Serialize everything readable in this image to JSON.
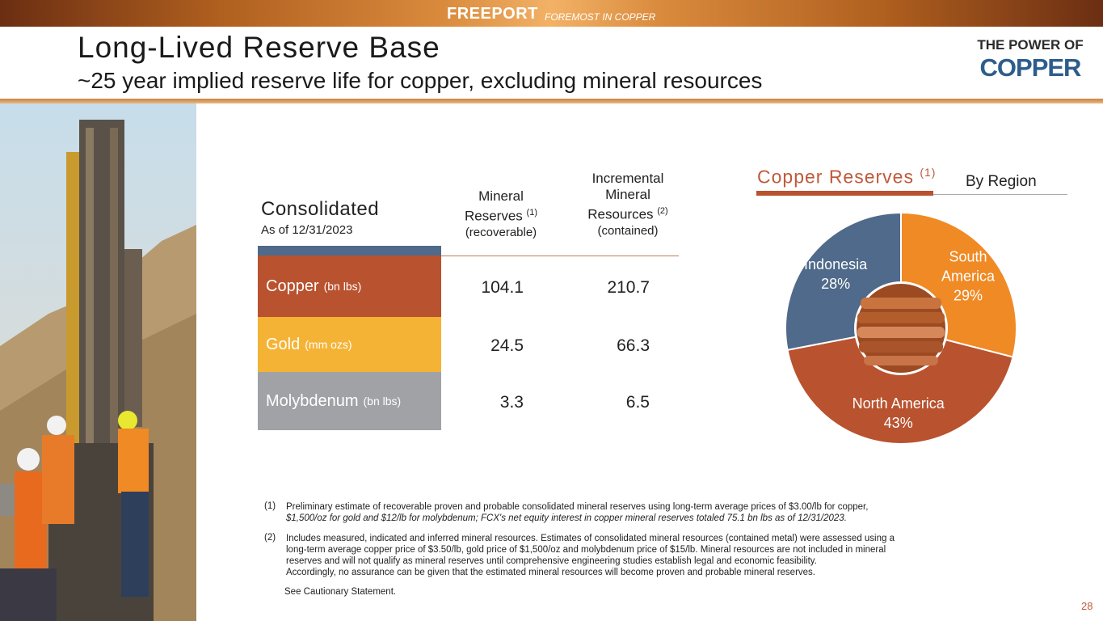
{
  "header": {
    "brand": "FREEPORT",
    "tagline": "FOREMOST IN COPPER",
    "logo_line1": "THE POWER OF",
    "logo_line2": "COPPER"
  },
  "slide": {
    "title": "Long-Lived Reserve Base",
    "subtitle": "~25 year implied reserve life for copper, excluding mineral resources",
    "page_number": "28"
  },
  "table": {
    "title": "Consolidated",
    "date": "As of 12/31/2023",
    "col1": {
      "line1": "Mineral",
      "line2": "Reserves",
      "note": "(1)",
      "paren": "(recoverable)"
    },
    "col2": {
      "line1": "Incremental",
      "line2": "Mineral",
      "line3": "Resources",
      "note": "(2)",
      "paren": "(contained)"
    },
    "rows": [
      {
        "label": "Copper",
        "unit": "(bn lbs)",
        "reserves": "104.1",
        "resources": "210.7",
        "color": "#b9522f"
      },
      {
        "label": "Gold",
        "unit": "(mm ozs)",
        "reserves": "24.5",
        "resources": "66.3",
        "color": "#f5b335"
      },
      {
        "label": "Molybdenum",
        "unit": "(bn lbs)",
        "reserves": "3.3",
        "resources": "6.5",
        "color": "#a0a2a6"
      }
    ]
  },
  "chart_data": {
    "type": "pie",
    "title": "Copper Reserves",
    "title_note": "(1)",
    "subtitle": "By Region",
    "slices": [
      {
        "name_lines": [
          "South",
          "America"
        ],
        "value": 29,
        "label": "29%",
        "color": "#f08a24"
      },
      {
        "name_lines": [
          "North America"
        ],
        "value": 43,
        "label": "43%",
        "color": "#b9522f"
      },
      {
        "name_lines": [
          "Indonesia"
        ],
        "value": 28,
        "label": "28%",
        "color": "#4f6a8a"
      }
    ]
  },
  "footnotes": [
    {
      "num": "(1)",
      "lines": [
        "Preliminary estimate of recoverable proven and probable consolidated mineral reserves using long-term average prices of $3.00/lb for copper,",
        "$1,500/oz for gold and $12/lb for molybdenum; FCX's net equity interest in copper mineral reserves totaled 75.1 bn lbs as of 12/31/2023."
      ]
    },
    {
      "num": "(2)",
      "lines": [
        "Includes measured, indicated and inferred mineral resources. Estimates of consolidated mineral resources (contained metal) were assessed using a",
        "long-term average copper price of $3.50/lb, gold price of $1,500/oz and molybdenum price of $15/lb. Mineral resources are not included in mineral",
        "reserves and will not qualify as mineral reserves until comprehensive engineering studies establish legal and economic feasibility.",
        "Accordingly, no assurance can be given that the estimated mineral resources will become proven and probable mineral reserves."
      ]
    }
  ],
  "cautionary": "See Cautionary Statement."
}
